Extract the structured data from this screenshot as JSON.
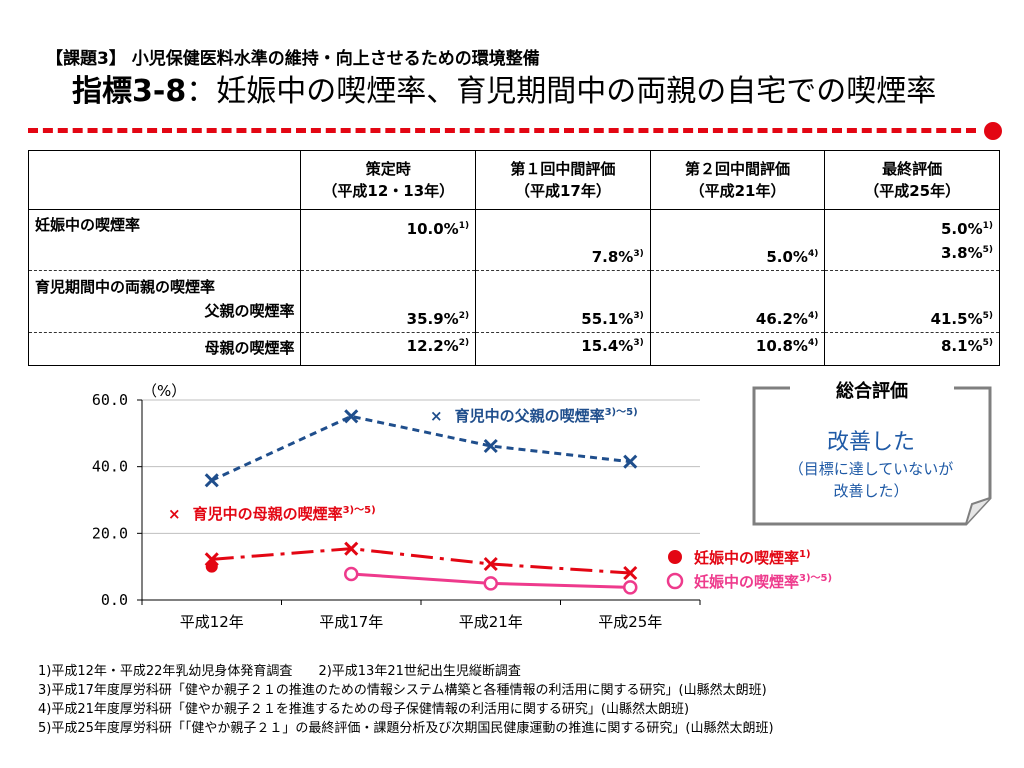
{
  "header": {
    "subtitle": "【課題3】 小児保健医料水準の維持・向上させるための環境整備",
    "title_prefix": "指標3-8",
    "title_sep": "：",
    "title_main": "妊娠中の喫煙率、育児期間中の両親の自宅での喫煙率"
  },
  "table": {
    "columns": [
      {
        "line1": "策定時",
        "line2": "（平成12・13年）"
      },
      {
        "line1": "第１回中間評価",
        "line2": "（平成17年）"
      },
      {
        "line1": "第２回中間評価",
        "line2": "（平成21年）"
      },
      {
        "line1": "最終評価",
        "line2": "（平成25年）"
      }
    ],
    "rows": {
      "pregnancy": {
        "label": "妊娠中の喫煙率",
        "c0": {
          "v": "10.0%",
          "s": "1)"
        },
        "c1": {
          "v": "7.8%",
          "s": "3)"
        },
        "c2": {
          "v": "5.0%",
          "s": "4)"
        },
        "c3a": {
          "v": "5.0%",
          "s": "1)"
        },
        "c3b": {
          "v": "3.8%",
          "s": "5)"
        }
      },
      "father": {
        "label1": "育児期間中の両親の喫煙率",
        "label2": "父親の喫煙率",
        "c0": {
          "v": "35.9%",
          "s": "2)"
        },
        "c1": {
          "v": "55.1%",
          "s": "3)"
        },
        "c2": {
          "v": "46.2%",
          "s": "4)"
        },
        "c3": {
          "v": "41.5%",
          "s": "5)"
        }
      },
      "mother": {
        "label": "母親の喫煙率",
        "c0": {
          "v": "12.2%",
          "s": "2)"
        },
        "c1": {
          "v": "15.4%",
          "s": "3)"
        },
        "c2": {
          "v": "10.8%",
          "s": "4)"
        },
        "c3": {
          "v": "8.1%",
          "s": "5)"
        }
      }
    }
  },
  "chart_data": {
    "type": "line",
    "ylabel": "（%）",
    "ylim": [
      0,
      60
    ],
    "yticks": [
      0,
      20,
      40,
      60
    ],
    "ytick_labels": [
      "0.0",
      "20.0",
      "40.0",
      "60.0"
    ],
    "categories": [
      "平成12年",
      "平成17年",
      "平成21年",
      "平成25年"
    ],
    "grid": "horizontal",
    "series": [
      {
        "name": "育児中の父親の喫煙率",
        "sup": "3)～5)",
        "marker": "×",
        "color": "#1f4e8c",
        "dash": "dashed",
        "values": [
          35.9,
          55.1,
          46.2,
          41.5
        ]
      },
      {
        "name": "育児中の母親の喫煙率",
        "sup": "3)～5)",
        "marker": "×",
        "color": "#e30613",
        "dash": "dash-dot",
        "values": [
          12.2,
          15.4,
          10.8,
          8.1
        ]
      },
      {
        "name": "妊娠中の喫煙率",
        "sup": "1)",
        "marker": "●",
        "color": "#e30613",
        "dash": "none",
        "values": [
          10.0,
          null,
          null,
          null
        ]
      },
      {
        "name": "妊娠中の喫煙率",
        "sup": "3)～5)",
        "marker": "○",
        "color": "#ee3a8c",
        "dash": "solid",
        "values": [
          null,
          7.8,
          5.0,
          3.8
        ]
      }
    ]
  },
  "evaluation": {
    "title": "総合評価",
    "result": "改善した",
    "note_line1": "（目標に達していないが",
    "note_line2": "改善した）"
  },
  "footnotes": {
    "f1": "1)平成12年・平成22年乳幼児身体発育調査",
    "f2": "2)平成13年21世紀出生児縦断調査",
    "f3": "3)平成17年度厚労科研「健やか親子２１の推進のための情報システム構築と各種情報の利活用に関する研究」(山縣然太朗班)",
    "f4": "4)平成21年度厚労科研「健やか親子２１を推進するための母子保健情報の利活用に関する研究」(山縣然太朗班)",
    "f5": "5)平成25年度厚労科研「「健やか親子２１」の最終評価・課題分析及び次期国民健康運動の推進に関する研究」(山縣然太朗班)"
  }
}
